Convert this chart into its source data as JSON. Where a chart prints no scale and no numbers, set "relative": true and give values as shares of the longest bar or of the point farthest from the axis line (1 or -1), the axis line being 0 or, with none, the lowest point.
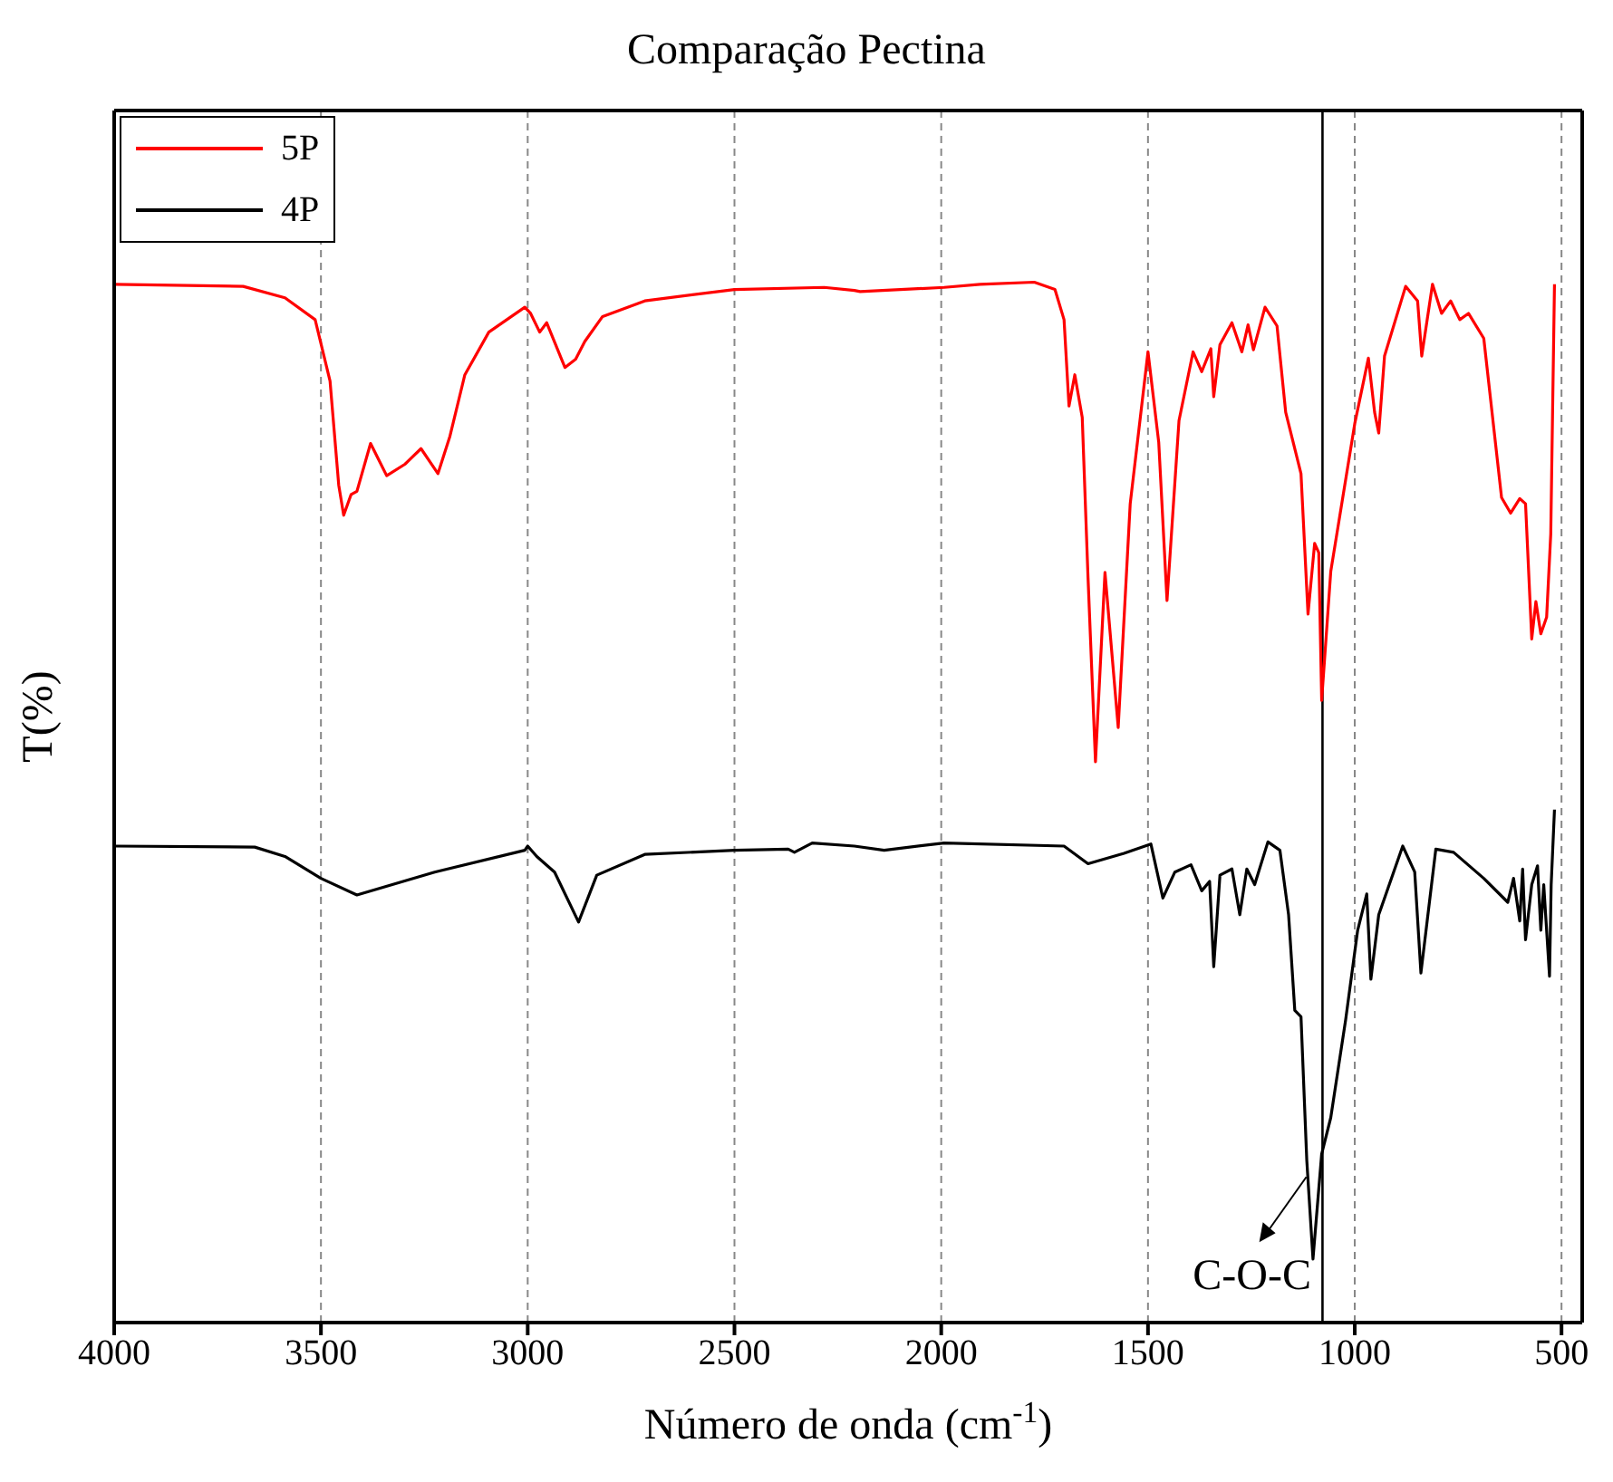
{
  "chart_data": {
    "type": "line",
    "title": "Comparação Pectina",
    "xlabel": "Número de onda (cm$^{-1}$)",
    "ylabel": "T(%)",
    "relative": true,
    "xlim": [
      4000,
      450
    ],
    "xticks": [
      4000,
      3500,
      3000,
      2500,
      2000,
      1500,
      1000,
      500
    ],
    "grid": "x",
    "legend": "top left",
    "marker": "none",
    "line_style": "solid",
    "ref_lines": [
      {
        "axis": "x",
        "value": 1078,
        "color": "#000000",
        "line_style": "solid"
      }
    ],
    "annotations": [
      {
        "text": "C-O-C",
        "x": 1117,
        "y": 0.14
      }
    ],
    "series": [
      {
        "name": "5P",
        "color": "#ff0000",
        "x": [
          4000,
          3688,
          3587,
          3514,
          3478,
          3457,
          3445,
          3427,
          3413,
          3380,
          3341,
          3297,
          3258,
          3217,
          3188,
          3152,
          3094,
          3007,
          2993,
          2971,
          2954,
          2910,
          2884,
          2862,
          2819,
          2717,
          2500,
          2283,
          2210,
          2196,
          1993,
          1906,
          1775,
          1725,
          1703,
          1691,
          1677,
          1659,
          1645,
          1627,
          1604,
          1572,
          1543,
          1500,
          1474,
          1454,
          1425,
          1391,
          1370,
          1355,
          1348,
          1341,
          1326,
          1297,
          1273,
          1258,
          1245,
          1217,
          1188,
          1167,
          1130,
          1113,
          1097,
          1087,
          1080,
          1058,
          1029,
          1000,
          967,
          952,
          942,
          928,
          877,
          848,
          838,
          812,
          790,
          768,
          746,
          725,
          688,
          645,
          623,
          601,
          587,
          572,
          562,
          550,
          536,
          526,
          517
        ],
        "values": [
          0.998,
          0.996,
          0.985,
          0.964,
          0.905,
          0.805,
          0.776,
          0.796,
          0.799,
          0.845,
          0.814,
          0.825,
          0.84,
          0.816,
          0.852,
          0.911,
          0.952,
          0.976,
          0.97,
          0.952,
          0.961,
          0.918,
          0.926,
          0.943,
          0.967,
          0.982,
          0.993,
          0.995,
          0.992,
          0.991,
          0.995,
          0.998,
          1,
          0.993,
          0.964,
          0.881,
          0.911,
          0.87,
          0.716,
          0.539,
          0.721,
          0.572,
          0.787,
          0.933,
          0.846,
          0.694,
          0.867,
          0.933,
          0.914,
          0.929,
          0.936,
          0.89,
          0.94,
          0.961,
          0.933,
          0.959,
          0.935,
          0.976,
          0.958,
          0.875,
          0.816,
          0.681,
          0.749,
          0.74,
          0.598,
          0.722,
          0.793,
          0.864,
          0.927,
          0.875,
          0.855,
          0.929,
          0.996,
          0.982,
          0.929,
          0.998,
          0.97,
          0.982,
          0.964,
          0.97,
          0.946,
          0.793,
          0.778,
          0.792,
          0.787,
          0.657,
          0.693,
          0.662,
          0.678,
          0.758,
          0.998
        ]
      },
      {
        "name": "4P",
        "color": "#000000",
        "x": [
          4000,
          3660,
          3587,
          3500,
          3413,
          3225,
          3007,
          3000,
          2978,
          2935,
          2877,
          2833,
          2717,
          2500,
          2370,
          2355,
          2312,
          2210,
          2138,
          1993,
          1703,
          1645,
          1558,
          1493,
          1464,
          1435,
          1396,
          1370,
          1351,
          1341,
          1326,
          1297,
          1278,
          1261,
          1242,
          1210,
          1181,
          1160,
          1145,
          1130,
          1116,
          1101,
          1080,
          1058,
          1022,
          993,
          971,
          961,
          942,
          884,
          855,
          840,
          804,
          761,
          688,
          630,
          616,
          601,
          594,
          587,
          572,
          558,
          550,
          543,
          529,
          525,
          517
        ],
        "values": [
          0.458,
          0.457,
          0.448,
          0.427,
          0.411,
          0.433,
          0.454,
          0.458,
          0.448,
          0.433,
          0.385,
          0.43,
          0.45,
          0.454,
          0.455,
          0.452,
          0.461,
          0.458,
          0.454,
          0.461,
          0.458,
          0.441,
          0.451,
          0.46,
          0.408,
          0.433,
          0.44,
          0.415,
          0.424,
          0.342,
          0.43,
          0.436,
          0.392,
          0.436,
          0.421,
          0.462,
          0.454,
          0.392,
          0.3,
          0.294,
          0.156,
          0.061,
          0.162,
          0.197,
          0.291,
          0.377,
          0.412,
          0.33,
          0.392,
          0.458,
          0.433,
          0.336,
          0.455,
          0.452,
          0.427,
          0.404,
          0.427,
          0.386,
          0.436,
          0.368,
          0.421,
          0.439,
          0.377,
          0.421,
          0.333,
          0.421,
          0.493
        ]
      }
    ]
  }
}
